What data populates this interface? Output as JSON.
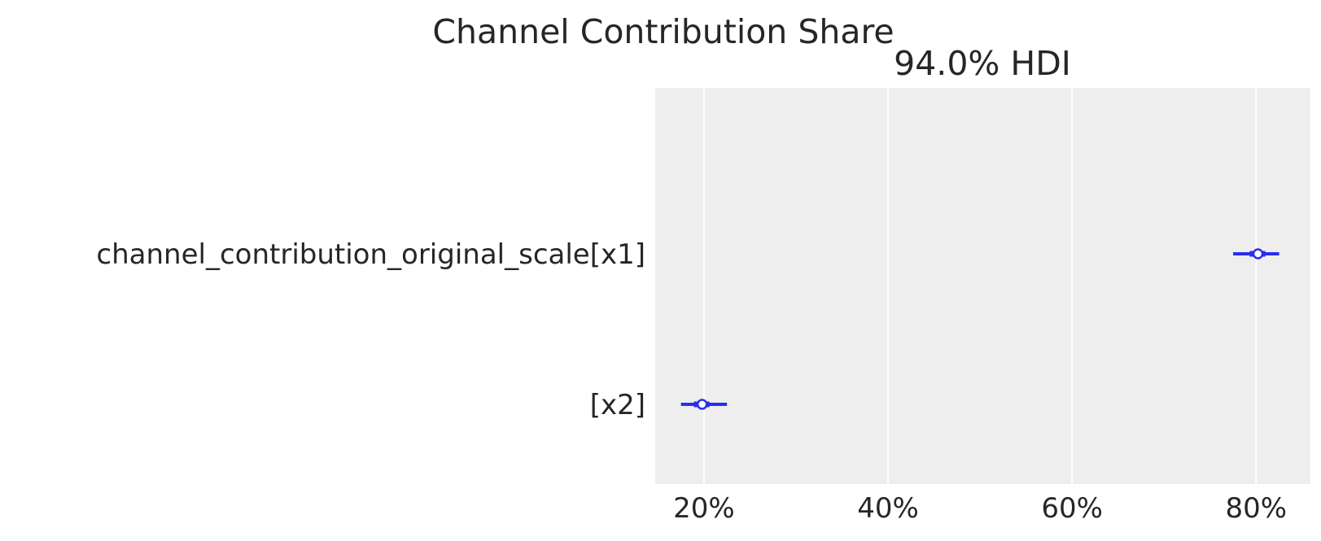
{
  "chart_data": {
    "type": "forest",
    "title": "Channel Contribution Share",
    "subtitle": "94.0% HDI",
    "xlabel": "",
    "ylabel": "",
    "xlim": [
      14.7,
      85.9
    ],
    "x_ticks": [
      20,
      40,
      60,
      80
    ],
    "x_tick_labels": [
      "20%",
      "40%",
      "60%",
      "80%"
    ],
    "grid": "vertical",
    "colors": {
      "marker": "#2a2eec",
      "background": "#eeeeee",
      "grid": "#ffffff"
    },
    "rows": [
      {
        "label": "channel_contribution_original_scale[x1]",
        "median": 80.2,
        "hdi_low": 77.5,
        "hdi_high": 82.5,
        "iqr_low": 79.3,
        "iqr_high": 81.0
      },
      {
        "label": "[x2]",
        "median": 19.8,
        "hdi_low": 17.5,
        "hdi_high": 22.5,
        "iqr_low": 18.9,
        "iqr_high": 20.6
      }
    ]
  }
}
